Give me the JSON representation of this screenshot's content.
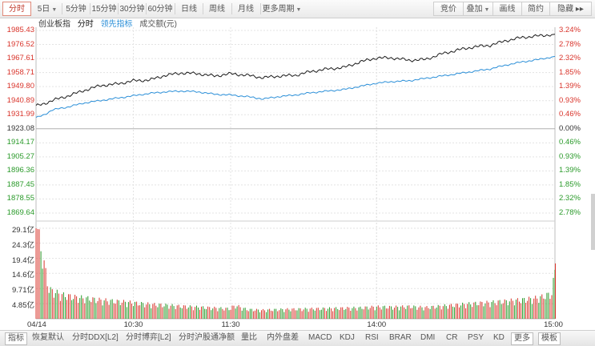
{
  "toolbar": {
    "tabs": [
      {
        "label": "分时",
        "active": true
      },
      {
        "label": "5日",
        "dropdown": true
      },
      {
        "label": "5分钟"
      },
      {
        "label": "15分钟"
      },
      {
        "label": "30分钟"
      },
      {
        "label": "60分钟"
      },
      {
        "label": "日线"
      },
      {
        "label": "周线"
      },
      {
        "label": "月线"
      },
      {
        "label": "更多周期",
        "dropdown": true
      }
    ],
    "right_tabs": [
      {
        "label": "竞价"
      },
      {
        "label": "叠加",
        "dropdown": true
      },
      {
        "label": "画线"
      },
      {
        "label": "简约"
      },
      {
        "label": "隐藏 ▸▸"
      }
    ]
  },
  "legend": {
    "name": "创业板指",
    "mode": "分时",
    "leading": "领先指标",
    "volume": "成交额(元)"
  },
  "colors": {
    "up": "#d9342b",
    "down": "#2a9a2a",
    "flat": "#333333",
    "price": "#1a1a1a",
    "leading": "#2b8fd8",
    "grid": "#e3e3e3"
  },
  "chart_data": {
    "type": "line",
    "title": "",
    "series_names": [
      "创业板指",
      "领先指标"
    ],
    "prev_close": 1923.08,
    "price_ticks": [
      {
        "label": "1985.43",
        "pct": "3.24%",
        "dir": "up"
      },
      {
        "label": "1976.52",
        "pct": "2.78%",
        "dir": "up"
      },
      {
        "label": "1967.61",
        "pct": "2.32%",
        "dir": "up"
      },
      {
        "label": "1958.71",
        "pct": "1.85%",
        "dir": "up"
      },
      {
        "label": "1949.80",
        "pct": "1.39%",
        "dir": "up"
      },
      {
        "label": "1940.89",
        "pct": "0.93%",
        "dir": "up"
      },
      {
        "label": "1931.99",
        "pct": "0.46%",
        "dir": "up"
      },
      {
        "label": "1923.08",
        "pct": "0.00%",
        "dir": "flat"
      },
      {
        "label": "1914.17",
        "pct": "0.46%",
        "dir": "down"
      },
      {
        "label": "1905.27",
        "pct": "0.93%",
        "dir": "down"
      },
      {
        "label": "1896.36",
        "pct": "1.39%",
        "dir": "down"
      },
      {
        "label": "1887.45",
        "pct": "1.85%",
        "dir": "down"
      },
      {
        "label": "1878.55",
        "pct": "2.32%",
        "dir": "down"
      },
      {
        "label": "1869.64",
        "pct": "2.78%",
        "dir": "down"
      }
    ],
    "ylim": [
      1869.64,
      1985.43
    ],
    "volume_ticks": [
      "29.1亿",
      "24.3亿",
      "19.4亿",
      "14.6亿",
      "9.71亿",
      "4.85亿"
    ],
    "volume_max": 29.1,
    "x_ticks": [
      "04/14",
      "10:30",
      "11:30",
      "14:00",
      "15:00"
    ],
    "price": [
      [
        0,
        1937.5
      ],
      [
        5,
        1939
      ],
      [
        10,
        1941
      ],
      [
        20,
        1944
      ],
      [
        30,
        1947.5
      ],
      [
        40,
        1950.5
      ],
      [
        50,
        1951.5
      ],
      [
        60,
        1953.5
      ],
      [
        70,
        1954
      ],
      [
        80,
        1957
      ],
      [
        90,
        1958.5
      ],
      [
        100,
        1958
      ],
      [
        110,
        1956.5
      ],
      [
        120,
        1958
      ],
      [
        130,
        1957
      ],
      [
        140,
        1955.5
      ],
      [
        150,
        1956.5
      ],
      [
        160,
        1957
      ],
      [
        170,
        1959.5
      ],
      [
        180,
        1961
      ],
      [
        190,
        1962
      ],
      [
        200,
        1965.5
      ],
      [
        210,
        1968
      ],
      [
        220,
        1968
      ],
      [
        230,
        1966.5
      ],
      [
        240,
        1967
      ],
      [
        250,
        1970.5
      ],
      [
        260,
        1973
      ],
      [
        270,
        1975
      ],
      [
        280,
        1976
      ],
      [
        290,
        1979
      ],
      [
        300,
        1981
      ],
      [
        310,
        1982
      ],
      [
        320,
        1983
      ]
    ],
    "leading": [
      [
        0,
        1930
      ],
      [
        5,
        1932
      ],
      [
        10,
        1935
      ],
      [
        20,
        1937
      ],
      [
        30,
        1939.5
      ],
      [
        40,
        1941
      ],
      [
        50,
        1942.5
      ],
      [
        60,
        1944
      ],
      [
        70,
        1945.5
      ],
      [
        80,
        1946.5
      ],
      [
        90,
        1947
      ],
      [
        100,
        1946.5
      ],
      [
        110,
        1945
      ],
      [
        120,
        1944.5
      ],
      [
        130,
        1943.5
      ],
      [
        140,
        1942
      ],
      [
        150,
        1943.5
      ],
      [
        160,
        1944.5
      ],
      [
        170,
        1946
      ],
      [
        180,
        1947
      ],
      [
        190,
        1948
      ],
      [
        200,
        1950
      ],
      [
        210,
        1952
      ],
      [
        220,
        1953
      ],
      [
        230,
        1953.5
      ],
      [
        240,
        1955
      ],
      [
        250,
        1956.5
      ],
      [
        260,
        1958
      ],
      [
        270,
        1959.5
      ],
      [
        280,
        1961
      ],
      [
        290,
        1963.5
      ],
      [
        300,
        1965.5
      ],
      [
        310,
        1967
      ],
      [
        320,
        1969
      ]
    ],
    "volume": [
      [
        0,
        29.1,
        "up"
      ],
      [
        8,
        8.8,
        "down"
      ],
      [
        16,
        7.2,
        "up"
      ],
      [
        24,
        6.5,
        "up"
      ],
      [
        32,
        6.1,
        "down"
      ],
      [
        40,
        5.6,
        "up"
      ],
      [
        48,
        5.3,
        "down"
      ],
      [
        56,
        5.0,
        "up"
      ],
      [
        64,
        4.6,
        "up"
      ],
      [
        72,
        4.3,
        "down"
      ],
      [
        80,
        4.1,
        "up"
      ],
      [
        88,
        3.8,
        "down"
      ],
      [
        96,
        3.6,
        "up"
      ],
      [
        104,
        3.4,
        "down"
      ],
      [
        112,
        3.2,
        "up"
      ],
      [
        120,
        3.0,
        "down"
      ],
      [
        122,
        4.2,
        "up"
      ],
      [
        130,
        2.8,
        "up"
      ],
      [
        140,
        2.6,
        "down"
      ],
      [
        150,
        2.8,
        "up"
      ],
      [
        160,
        2.9,
        "up"
      ],
      [
        170,
        3.0,
        "down"
      ],
      [
        180,
        3.1,
        "up"
      ],
      [
        190,
        3.2,
        "up"
      ],
      [
        200,
        3.3,
        "down"
      ],
      [
        210,
        3.6,
        "up"
      ],
      [
        220,
        3.5,
        "down"
      ],
      [
        230,
        3.7,
        "up"
      ],
      [
        240,
        3.4,
        "up"
      ],
      [
        250,
        3.8,
        "up"
      ],
      [
        260,
        4.2,
        "down"
      ],
      [
        270,
        4.6,
        "up"
      ],
      [
        280,
        4.9,
        "up"
      ],
      [
        290,
        5.3,
        "down"
      ],
      [
        300,
        5.7,
        "up"
      ],
      [
        310,
        6.3,
        "up"
      ],
      [
        318,
        7.6,
        "down"
      ],
      [
        321,
        17.8,
        "up"
      ]
    ]
  },
  "bottombar": {
    "tabs": [
      {
        "label": "指标",
        "box": true
      },
      {
        "label": "恢复默认"
      },
      {
        "label": "分时DDX[L2]"
      },
      {
        "label": "分时博弈[L2]"
      },
      {
        "label": "分时沪股通净额"
      },
      {
        "label": "量比"
      },
      {
        "label": "内外盘差"
      },
      {
        "label": "MACD"
      },
      {
        "label": "KDJ"
      },
      {
        "label": "RSI"
      },
      {
        "label": "BRAR"
      },
      {
        "label": "DMI"
      },
      {
        "label": "CR"
      },
      {
        "label": "PSY"
      },
      {
        "label": "KD"
      },
      {
        "label": "更多",
        "box": true
      },
      {
        "label": "模板",
        "box": true
      }
    ]
  }
}
